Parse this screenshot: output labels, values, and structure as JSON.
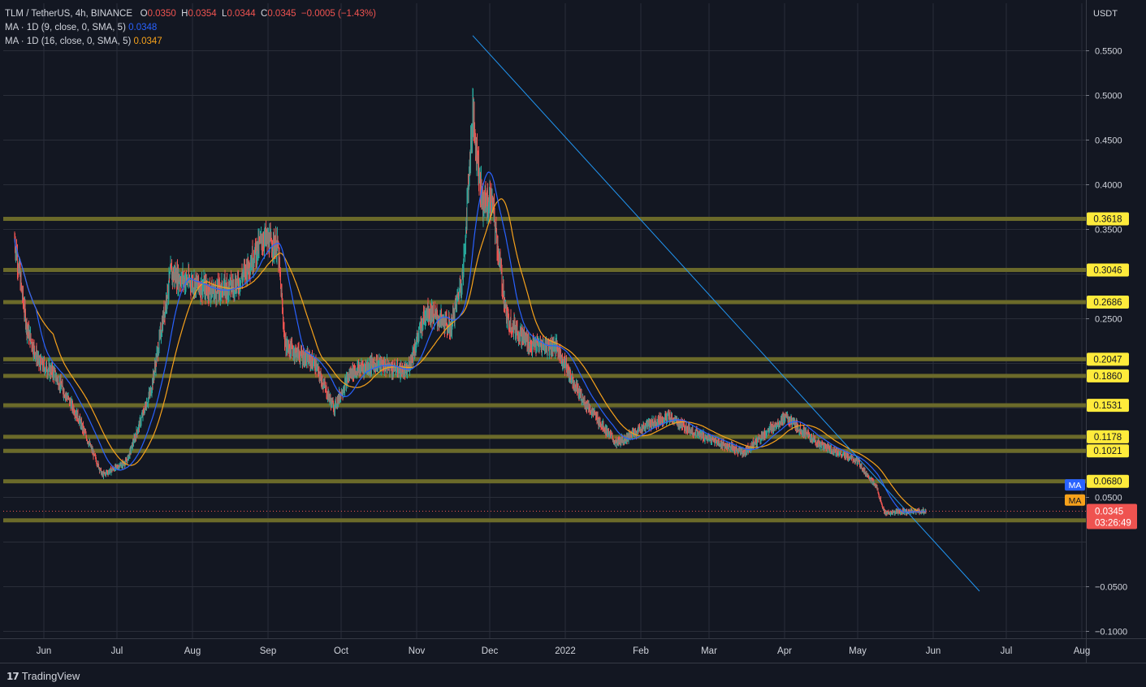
{
  "header": {
    "symbol": "TLM / TetherUS, 4h, BINANCE",
    "o_label": "O",
    "o_value": "0.0350",
    "h_label": "H",
    "h_value": "0.0354",
    "l_label": "L",
    "l_value": "0.0344",
    "c_label": "C",
    "c_value": "0.0345",
    "change": "−0.0005 (−1.43%)",
    "ma1_label": "MA · 1D (9, close, 0, SMA, 5)",
    "ma1_value": "0.0348",
    "ma2_label": "MA · 1D (16, close, 0, SMA, 5)",
    "ma2_value": "0.0347"
  },
  "colors": {
    "background": "#131722",
    "grid": "#2a2e39",
    "up": "#26a69a",
    "down": "#ef5350",
    "ma1": "#2962ff",
    "ma2": "#f7a21b",
    "level_band": "#6b6a2a",
    "level_tag": "#ffeb3b",
    "trendline": "#2196f3"
  },
  "axis": {
    "unit": "USDT",
    "y_ticks": [
      "0.5500",
      "0.5000",
      "0.4500",
      "0.4000",
      "0.3500",
      "0.2500",
      "0.0500",
      "−0.0500",
      "−0.1000"
    ],
    "x_ticks": [
      "Jun",
      "Jul",
      "Aug",
      "Sep",
      "Oct",
      "Nov",
      "Dec",
      "2022",
      "Feb",
      "Mar",
      "Apr",
      "May",
      "Jun",
      "Jul",
      "Aug"
    ]
  },
  "price_tags": {
    "ma1": "MA",
    "ma2": "MA",
    "last_price": "0.0345",
    "countdown": "03:26:49"
  },
  "footer": {
    "brand": "TradingView"
  },
  "chart_data": {
    "type": "candlestick",
    "interval": "4h",
    "ylim": [
      -0.11,
      0.59
    ],
    "y_scale": "linear",
    "grid": true,
    "x_range": [
      "2021-05-20",
      "2022-08-01"
    ],
    "levels": [
      0.3618,
      0.3046,
      0.2686,
      0.2047,
      0.186,
      0.1531,
      0.1178,
      0.1021,
      0.068,
      0.0243
    ],
    "trendline": {
      "from": {
        "date": "2021-11-24",
        "price": 0.567
      },
      "to": {
        "date": "2022-06-20",
        "price": -0.055
      }
    },
    "current_price": 0.0345,
    "close_path": [
      {
        "date": "2021-05-20",
        "price": 0.34
      },
      {
        "date": "2021-05-25",
        "price": 0.24
      },
      {
        "date": "2021-05-30",
        "price": 0.2
      },
      {
        "date": "2021-06-05",
        "price": 0.19
      },
      {
        "date": "2021-06-15",
        "price": 0.14
      },
      {
        "date": "2021-06-25",
        "price": 0.075
      },
      {
        "date": "2021-07-05",
        "price": 0.09
      },
      {
        "date": "2021-07-15",
        "price": 0.17
      },
      {
        "date": "2021-07-23",
        "price": 0.3
      },
      {
        "date": "2021-08-01",
        "price": 0.29
      },
      {
        "date": "2021-08-10",
        "price": 0.28
      },
      {
        "date": "2021-08-20",
        "price": 0.29
      },
      {
        "date": "2021-08-30",
        "price": 0.34
      },
      {
        "date": "2021-09-05",
        "price": 0.33
      },
      {
        "date": "2021-09-08",
        "price": 0.22
      },
      {
        "date": "2021-09-20",
        "price": 0.2
      },
      {
        "date": "2021-09-28",
        "price": 0.15
      },
      {
        "date": "2021-10-05",
        "price": 0.19
      },
      {
        "date": "2021-10-15",
        "price": 0.2
      },
      {
        "date": "2021-10-28",
        "price": 0.19
      },
      {
        "date": "2021-11-05",
        "price": 0.26
      },
      {
        "date": "2021-11-15",
        "price": 0.24
      },
      {
        "date": "2021-11-20",
        "price": 0.3
      },
      {
        "date": "2021-11-24",
        "price": 0.48
      },
      {
        "date": "2021-11-28",
        "price": 0.38
      },
      {
        "date": "2021-12-02",
        "price": 0.38
      },
      {
        "date": "2021-12-08",
        "price": 0.25
      },
      {
        "date": "2021-12-18",
        "price": 0.22
      },
      {
        "date": "2021-12-28",
        "price": 0.22
      },
      {
        "date": "2022-01-08",
        "price": 0.16
      },
      {
        "date": "2022-01-22",
        "price": 0.11
      },
      {
        "date": "2022-02-03",
        "price": 0.13
      },
      {
        "date": "2022-02-12",
        "price": 0.14
      },
      {
        "date": "2022-02-25",
        "price": 0.12
      },
      {
        "date": "2022-03-15",
        "price": 0.1
      },
      {
        "date": "2022-04-01",
        "price": 0.14
      },
      {
        "date": "2022-04-15",
        "price": 0.11
      },
      {
        "date": "2022-05-01",
        "price": 0.09
      },
      {
        "date": "2022-05-09",
        "price": 0.06
      },
      {
        "date": "2022-05-12",
        "price": 0.032
      },
      {
        "date": "2022-05-20",
        "price": 0.034
      },
      {
        "date": "2022-05-29",
        "price": 0.0345
      }
    ]
  }
}
